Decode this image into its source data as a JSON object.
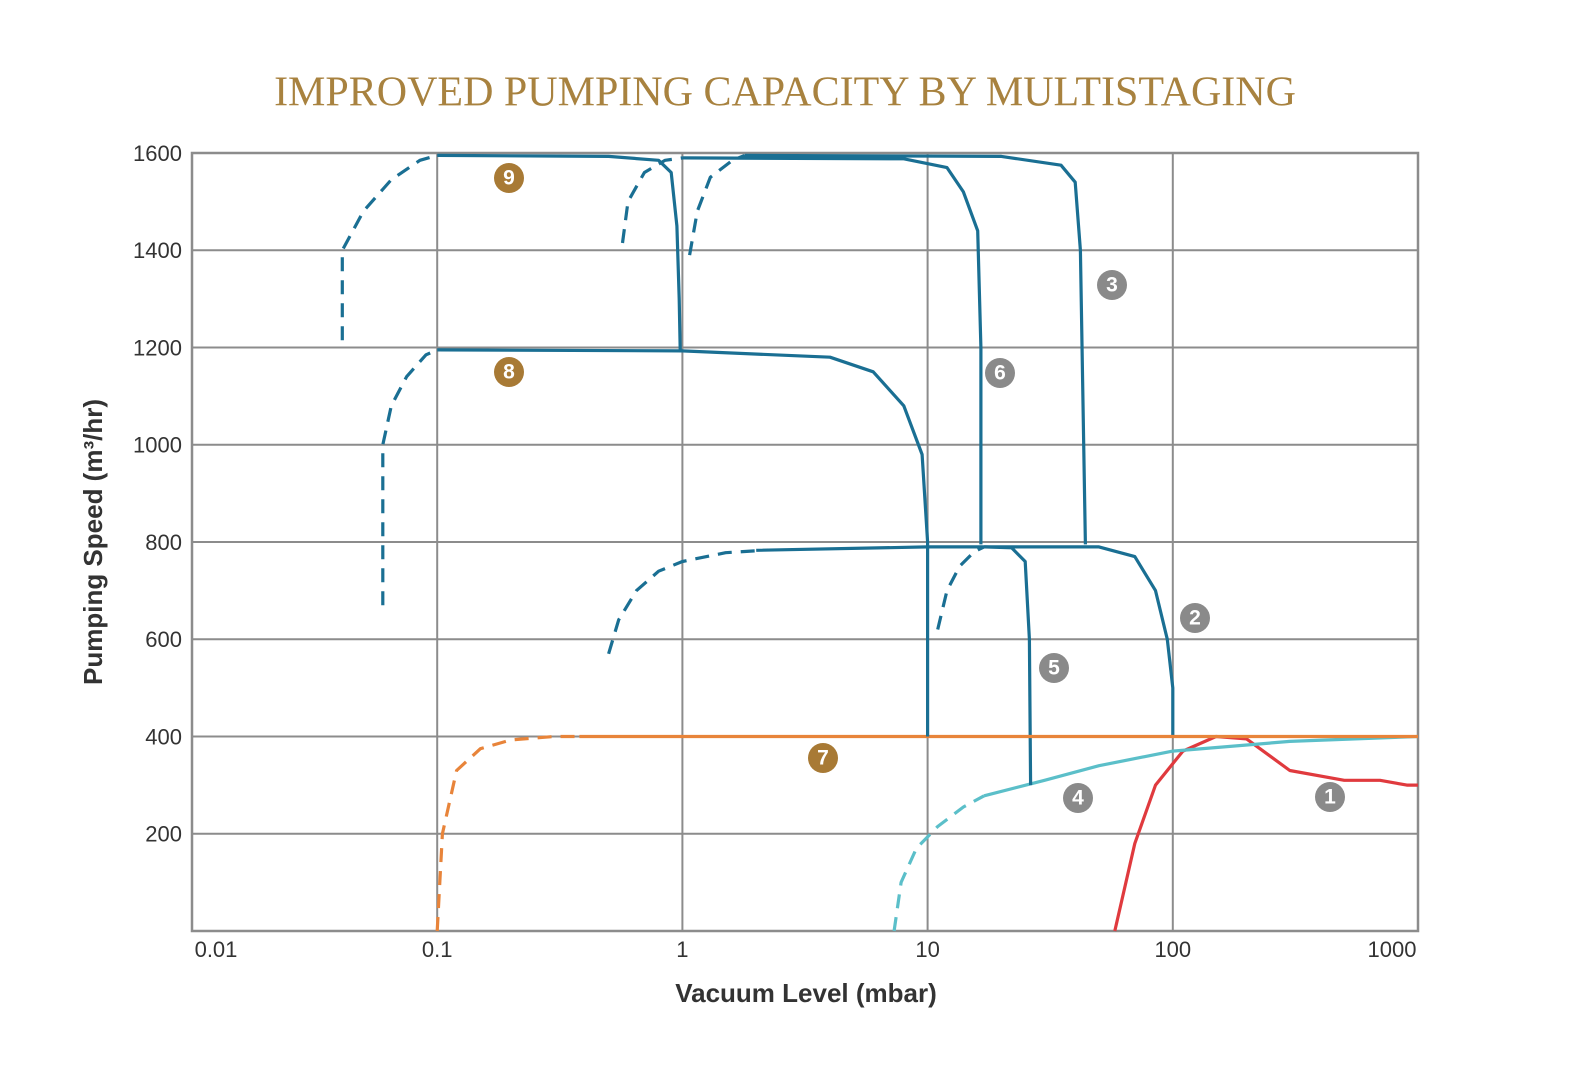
{
  "chart_data": {
    "type": "line",
    "title": "IMPROVED PUMPING CAPACITY BY MULTISTAGING",
    "x_label": "Vacuum Level (mbar)",
    "y_label": "Pumping Speed (m³/hr)",
    "x_scale": "log",
    "xlim": [
      0.01,
      1000
    ],
    "xticks": [
      0.01,
      0.1,
      1,
      10,
      100,
      1000
    ],
    "ylim": [
      0,
      1600
    ],
    "yticks": [
      200,
      400,
      600,
      800,
      1000,
      1200,
      1400,
      1600
    ],
    "grid": true,
    "series": [
      {
        "name": "1",
        "color": "#e03a3e",
        "label_color": "#8a8a8a",
        "x": [
          58,
          70,
          85,
          110,
          150,
          200,
          300,
          500,
          700,
          900,
          1000
        ],
        "values": [
          0,
          180,
          300,
          370,
          400,
          395,
          330,
          310,
          310,
          300,
          300
        ]
      },
      {
        "name": "2",
        "color": "#1a6f93",
        "label_color": "#8a8a8a",
        "dashed_x": [
          0.5,
          0.55,
          0.65,
          0.8,
          1,
          1.5,
          2
        ],
        "dashed_values": [
          570,
          640,
          700,
          740,
          760,
          778,
          782
        ],
        "x": [
          2,
          10,
          50,
          70,
          85,
          95,
          100,
          100
        ],
        "values": [
          783,
          790,
          790,
          770,
          700,
          600,
          500,
          400
        ]
      },
      {
        "name": "3",
        "color": "#1a6f93",
        "label_color": "#8a8a8a",
        "dashed_x": [
          1.07,
          1.15,
          1.3,
          1.6,
          1.8
        ],
        "dashed_values": [
          1390,
          1480,
          1550,
          1585,
          1595
        ],
        "x": [
          1.8,
          20,
          35,
          40,
          42,
          44
        ],
        "values": [
          1595,
          1593,
          1575,
          1540,
          1400,
          795
        ]
      },
      {
        "name": "4",
        "color": "#5bbfc9",
        "label_color": "#8a8a8a",
        "dashed_x": [
          7.3,
          7.8,
          9,
          11,
          14,
          17
        ],
        "dashed_values": [
          0,
          100,
          170,
          215,
          255,
          278
        ],
        "x": [
          17,
          30,
          50,
          100,
          300,
          1000
        ],
        "values": [
          278,
          310,
          340,
          370,
          390,
          400
        ]
      },
      {
        "name": "5",
        "color": "#1a6f93",
        "label_color": "#8a8a8a",
        "dashed_x": [
          11,
          12,
          13.5,
          15.5,
          17
        ],
        "dashed_values": [
          620,
          700,
          750,
          780,
          790
        ],
        "x": [
          17,
          22,
          25,
          26,
          26.3
        ],
        "values": [
          790,
          788,
          760,
          600,
          300
        ]
      },
      {
        "name": "6",
        "color": "#1a6f93",
        "label_color": "#8a8a8a",
        "dashed_x": [
          0.57,
          0.6,
          0.7,
          0.85,
          1
        ],
        "dashed_values": [
          1415,
          1500,
          1560,
          1585,
          1590
        ],
        "x": [
          1,
          8,
          12,
          14,
          16,
          16.5,
          16.5
        ],
        "values": [
          1590,
          1588,
          1570,
          1520,
          1440,
          1200,
          795
        ]
      },
      {
        "name": "7",
        "color": "#e8843a",
        "label_color": "#a87a35",
        "dashed_x": [
          0.1,
          0.105,
          0.12,
          0.15,
          0.2,
          0.3,
          0.38
        ],
        "dashed_values": [
          0,
          200,
          330,
          375,
          393,
          400,
          400
        ],
        "x": [
          0.38,
          1000
        ],
        "values": [
          400,
          400
        ]
      },
      {
        "name": "8",
        "color": "#1a6f93",
        "label_color": "#a87a35",
        "dashed_x": [
          0.06,
          0.06,
          0.065,
          0.075,
          0.09,
          0.1
        ],
        "dashed_values": [
          670,
          1000,
          1080,
          1140,
          1185,
          1195
        ],
        "x": [
          0.1,
          1,
          4,
          6,
          8,
          9.5,
          10,
          10
        ],
        "values": [
          1195,
          1193,
          1180,
          1150,
          1080,
          980,
          800,
          400
        ]
      },
      {
        "name": "9",
        "color": "#1a6f93",
        "label_color": "#a87a35",
        "dashed_x": [
          0.041,
          0.041,
          0.05,
          0.065,
          0.085,
          0.1
        ],
        "dashed_values": [
          1215,
          1400,
          1480,
          1545,
          1585,
          1595
        ],
        "x": [
          0.1,
          0.5,
          0.8,
          0.9,
          0.95,
          0.97,
          0.98
        ],
        "values": [
          1595,
          1593,
          1585,
          1560,
          1450,
          1300,
          1195
        ]
      }
    ]
  }
}
